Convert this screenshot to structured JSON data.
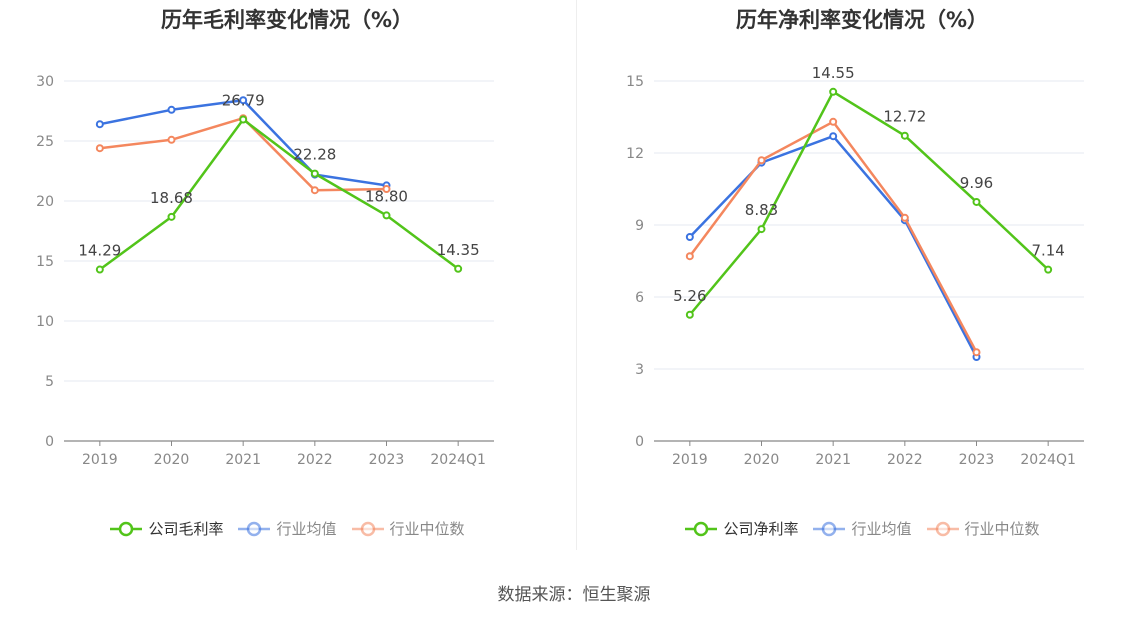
{
  "source": "数据来源：恒生聚源",
  "chart_data": [
    {
      "type": "line",
      "title": "历年毛利率变化情况（%）",
      "categories": [
        "2019",
        "2020",
        "2021",
        "2022",
        "2023",
        "2024Q1"
      ],
      "ylim": [
        0,
        30
      ],
      "yticks": [
        0,
        5,
        10,
        15,
        20,
        25,
        30
      ],
      "grid": true,
      "legend_position": "bottom",
      "series": [
        {
          "name": "公司毛利率",
          "color": "#52c41a",
          "values": [
            14.29,
            18.68,
            26.79,
            22.28,
            18.8,
            14.35
          ],
          "labels": [
            "14.29",
            "18.68",
            "26.79",
            "22.28",
            "18.80",
            "14.35"
          ]
        },
        {
          "name": "行业均值",
          "color": "#3b73e0",
          "values": [
            26.4,
            27.6,
            28.4,
            22.2,
            21.3,
            null
          ]
        },
        {
          "name": "行业中位数",
          "color": "#f4875e",
          "values": [
            24.4,
            25.1,
            26.9,
            20.9,
            21.0,
            null
          ]
        }
      ]
    },
    {
      "type": "line",
      "title": "历年净利率变化情况（%）",
      "categories": [
        "2019",
        "2020",
        "2021",
        "2022",
        "2023",
        "2024Q1"
      ],
      "ylim": [
        0,
        15
      ],
      "yticks": [
        0,
        3,
        6,
        9,
        12,
        15
      ],
      "grid": true,
      "legend_position": "bottom",
      "series": [
        {
          "name": "公司净利率",
          "color": "#52c41a",
          "values": [
            5.26,
            8.83,
            14.55,
            12.72,
            9.96,
            7.14
          ],
          "labels": [
            "5.26",
            "8.83",
            "14.55",
            "12.72",
            "9.96",
            "7.14"
          ]
        },
        {
          "name": "行业均值",
          "color": "#3b73e0",
          "values": [
            8.5,
            11.6,
            12.7,
            9.2,
            3.5,
            null
          ]
        },
        {
          "name": "行业中位数",
          "color": "#f4875e",
          "values": [
            7.7,
            11.7,
            13.3,
            9.3,
            3.7,
            null
          ]
        }
      ]
    }
  ]
}
